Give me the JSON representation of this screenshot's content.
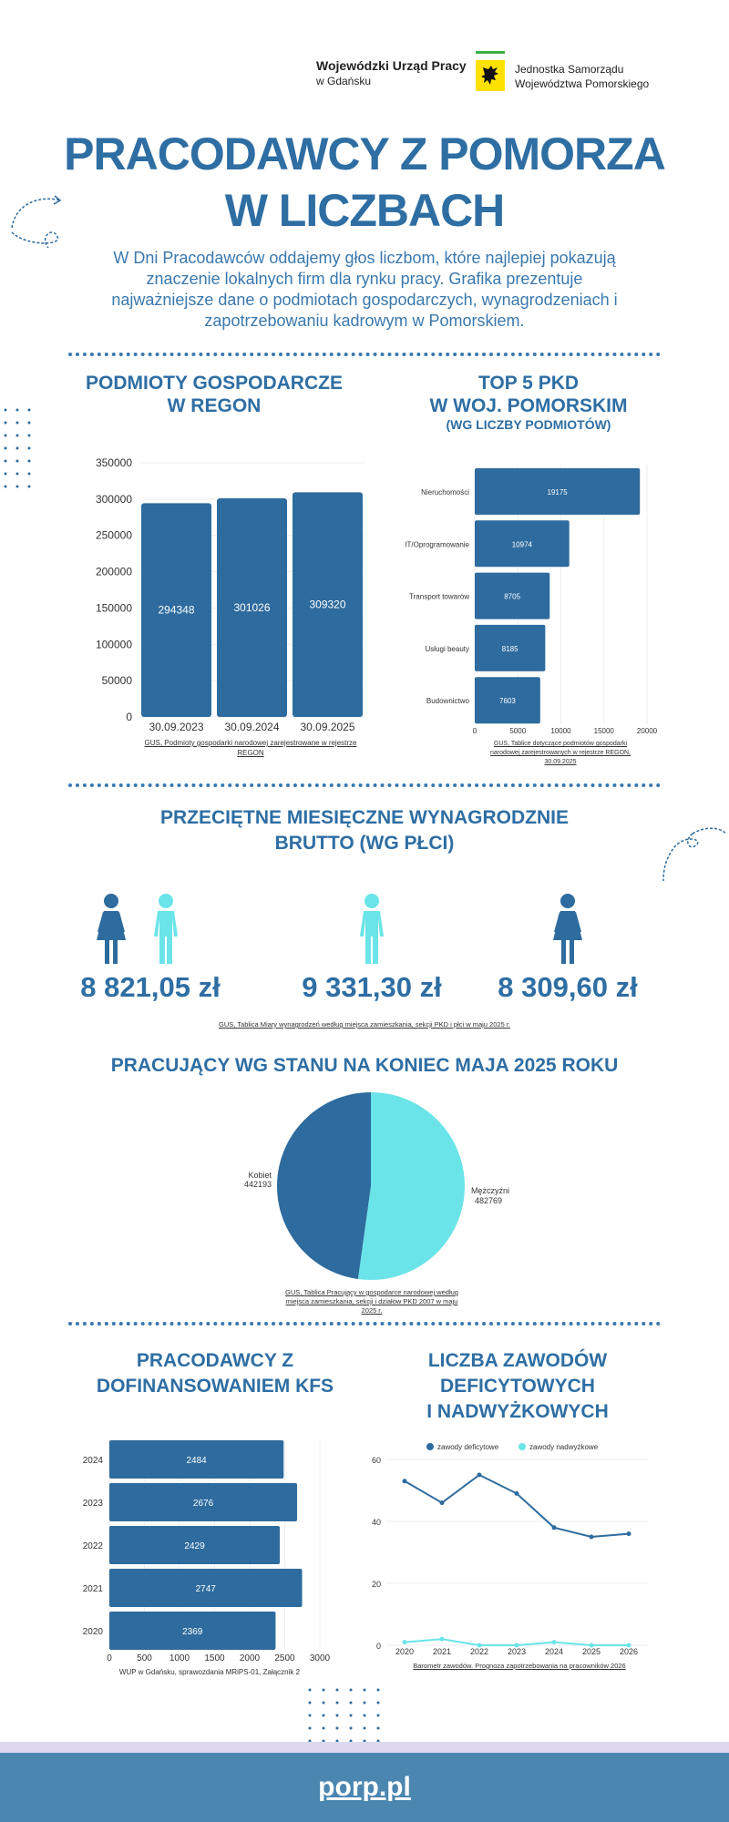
{
  "header": {
    "org_name": "Wojewódzki Urząd Pracy",
    "org_city": "w Gdańsku",
    "partner_line1": "Jednostka Samorządu",
    "partner_line2": "Województwa Pomorskiego"
  },
  "title": {
    "line1": "PRACODAWCY Z POMORZA",
    "line2": "W LICZBACH"
  },
  "intro": "W Dni Pracodawców oddajemy głos liczbom, które najlepiej pokazują znaczenie lokalnych firm dla rynku pracy. Grafika prezentuje najważniejsze dane o podmiotach gospodarczych, wynagrodzeniach i zapotrzebowaniu kadrowym w Pomorskiem.",
  "sections": {
    "regon": {
      "line1": "PODMIOTY GOSPODARCZE",
      "line2": "W REGON",
      "source": "GUS, Podmioty gospodarki narodowej zarejestrowane w rejestrze REGON"
    },
    "pkd": {
      "line1": "TOP 5 PKD",
      "line2": "W WOJ. POMORSKIM",
      "line3": "(WG LICZBY PODMIOTÓW)",
      "source": "GUS, Tablice dotyczące podmiotów gospodarki narodowej zarejestrowanych w rejestrze REGON, 30.09.2025"
    },
    "salary": {
      "line1": "PRZECIĘTNE MIESIĘCZNE WYNAGRODZNIE",
      "line2": "BRUTTO (WG PŁCI)",
      "total": "8 821,05 zł",
      "men": "9 331,30 zł",
      "women": "8 309,60 zł",
      "source": "GUS,  Tablica Miary wynagrodzeń  według miejsca zamieszkania, sekcji PKD i płci w maju 2025 r."
    },
    "workers": {
      "title": "PRACUJĄCY WG STANU NA KONIEC MAJA 2025 ROKU",
      "source": "GUS, Tablica Pracujący w gospodarce narodowej według miejsca zamieszkania, sekcji i działów PKD 2007 w maju 2025 r."
    },
    "kfs": {
      "line1": "PRACODAWCY Z",
      "line2": "DOFINANSOWANIEM KFS",
      "source": "WUP w Gdańsku, sprawozdania MRiPS-01, Załącznik 2"
    },
    "occupations": {
      "line1": "LICZBA ZAWODÓW",
      "line2": "DEFICYTOWYCH",
      "line3": "I NADWYŻKOWYCH",
      "source": "Barometr zawodów. Prognoza zapotrzebowania na pracowników 2026"
    }
  },
  "footer": {
    "url": "porp.pl"
  },
  "colors": {
    "primary": "#2e6b9e",
    "accent": "#6ae4e8",
    "footer": "#4b86b0"
  },
  "chart_data": [
    {
      "type": "bar",
      "title": "PODMIOTY GOSPODARCZE W REGON",
      "categories": [
        "30.09.2023",
        "30.09.2024",
        "30.09.2025"
      ],
      "values": [
        294348,
        301026,
        309320
      ],
      "ylim": [
        0,
        350000
      ],
      "yticks": [
        0,
        50000,
        100000,
        150000,
        200000,
        250000,
        300000,
        350000
      ]
    },
    {
      "type": "bar",
      "orientation": "horizontal",
      "title": "TOP 5 PKD W WOJ. POMORSKIM",
      "categories": [
        "Nieruchomości",
        "IT/Oprogramowanie",
        "Transport towarów",
        "Usługi beauty",
        "Budownictwo"
      ],
      "values": [
        19175,
        10974,
        8705,
        8185,
        7603
      ],
      "xlim": [
        0,
        20000
      ],
      "xticks": [
        0,
        5000,
        10000,
        15000,
        20000
      ]
    },
    {
      "type": "pie",
      "title": "PRACUJĄCY WG STANU NA KONIEC MAJA 2025 ROKU",
      "slices": [
        {
          "label": "Mężczyźni",
          "value": 482769
        },
        {
          "label": "Kobiet",
          "value": 442193
        }
      ]
    },
    {
      "type": "bar",
      "orientation": "horizontal",
      "title": "PRACODAWCY Z DOFINANSOWANIEM KFS",
      "categories": [
        "2024",
        "2023",
        "2022",
        "2021",
        "2020"
      ],
      "values": [
        2484,
        2676,
        2429,
        2747,
        2369
      ],
      "xlim": [
        0,
        3000
      ],
      "xticks": [
        0,
        500,
        1000,
        1500,
        2000,
        2500,
        3000
      ]
    },
    {
      "type": "line",
      "title": "LICZBA ZAWODÓW DEFICYTOWYCH I NADWYŻKOWYCH",
      "x": [
        "2020",
        "2021",
        "2022",
        "2023",
        "2024",
        "2025",
        "2026"
      ],
      "series": [
        {
          "name": "zawody deficytowe",
          "values": [
            53,
            46,
            55,
            49,
            38,
            35,
            36
          ]
        },
        {
          "name": "zawody nadwyżkowe",
          "values": [
            1,
            2,
            0,
            0,
            1,
            0,
            0
          ]
        }
      ],
      "ylim": [
        0,
        60
      ],
      "yticks": [
        0,
        20,
        40,
        60
      ],
      "legend": "top"
    }
  ]
}
